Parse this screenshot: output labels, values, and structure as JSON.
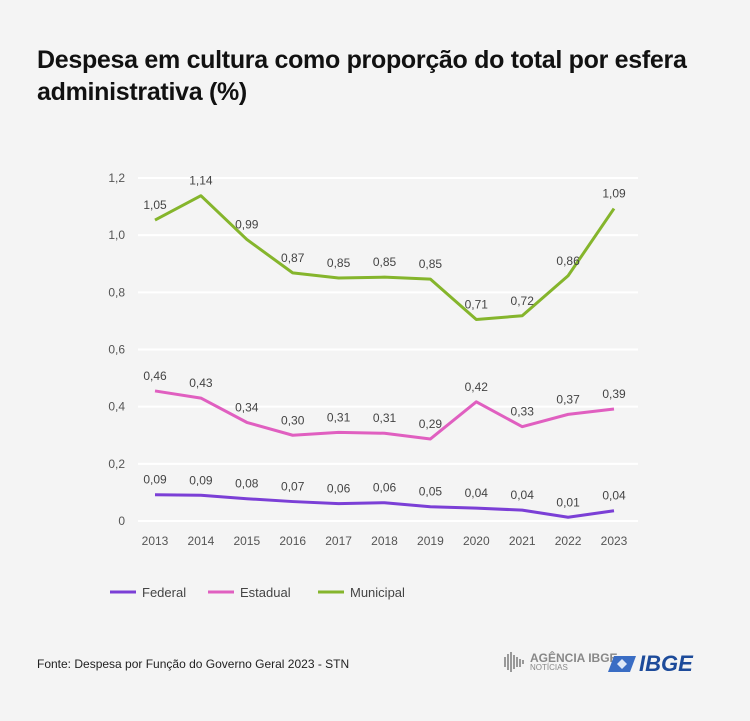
{
  "title": "Despesa em cultura como proporção do total por esfera administrativa (%)",
  "source": "Fonte:  Despesa por Função do Governo Geral 2023 - STN",
  "logos": {
    "agencia": "AGÊNCIA IBGE",
    "agencia_sub": "NOTÍCIAS",
    "ibge": "IBGE"
  },
  "chart_data": {
    "type": "line",
    "categories": [
      "2013",
      "2014",
      "2015",
      "2016",
      "2017",
      "2018",
      "2019",
      "2020",
      "2021",
      "2022",
      "2023"
    ],
    "ylim": [
      0,
      1.2
    ],
    "yticks": [
      0,
      0.2,
      0.4,
      0.6,
      0.8,
      1.0,
      1.2
    ],
    "ytick_labels": [
      "0",
      "0,2",
      "0,4",
      "0,6",
      "0,8",
      "1,0",
      "1,2"
    ],
    "grid": true,
    "legend_position": "bottom-left",
    "series": [
      {
        "name": "Federal",
        "color": "#7b3fd6",
        "values": [
          0.09,
          0.09,
          0.08,
          0.07,
          0.06,
          0.06,
          0.05,
          0.04,
          0.04,
          0.01,
          0.04
        ],
        "labels": [
          "0,09",
          "0,09",
          "0,08",
          "0,07",
          "0,06",
          "0,06",
          "0,05",
          "0,04",
          "0,04",
          "0,01",
          "0,04"
        ],
        "plot": [
          0.092,
          0.09,
          0.078,
          0.068,
          0.061,
          0.064,
          0.05,
          0.045,
          0.038,
          0.013,
          0.036
        ]
      },
      {
        "name": "Estadual",
        "color": "#e05fc0",
        "values": [
          0.46,
          0.43,
          0.34,
          0.3,
          0.31,
          0.31,
          0.29,
          0.42,
          0.33,
          0.37,
          0.39
        ],
        "labels": [
          "0,46",
          "0,43",
          "0,34",
          "0,30",
          "0,31",
          "0,31",
          "0,29",
          "0,42",
          "0,33",
          "0,37",
          "0,39"
        ],
        "plot": [
          0.455,
          0.43,
          0.345,
          0.3,
          0.31,
          0.307,
          0.287,
          0.417,
          0.33,
          0.373,
          0.392
        ]
      },
      {
        "name": "Municipal",
        "color": "#85b52c",
        "values": [
          1.05,
          1.14,
          0.99,
          0.87,
          0.85,
          0.85,
          0.85,
          0.71,
          0.72,
          0.86,
          1.09
        ],
        "labels": [
          "1,05",
          "1,14",
          "0,99",
          "0,87",
          "0,85",
          "0,85",
          "0,85",
          "0,71",
          "0,72",
          "0,86",
          "1,09"
        ],
        "plot": [
          1.053,
          1.138,
          0.985,
          0.868,
          0.85,
          0.853,
          0.846,
          0.705,
          0.718,
          0.858,
          1.093
        ]
      }
    ]
  }
}
